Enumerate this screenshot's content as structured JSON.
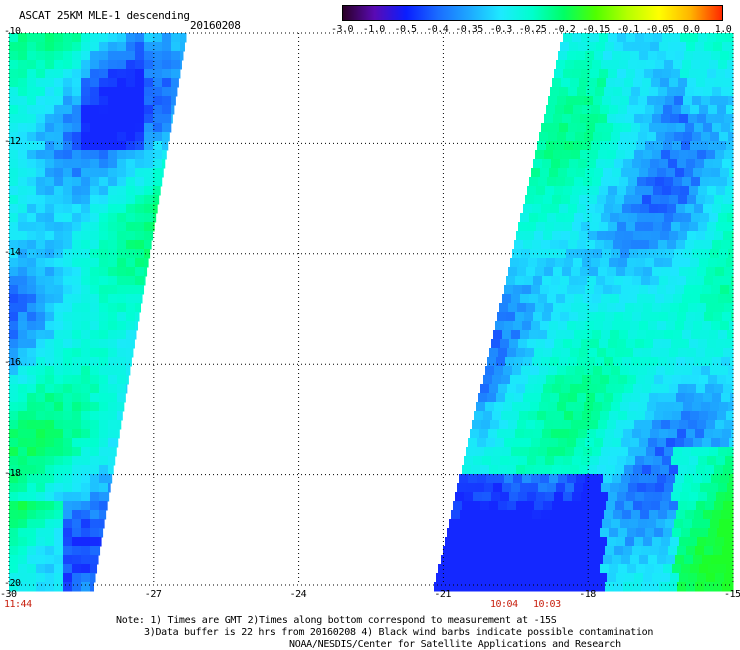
{
  "title": "ASCAT 25KM MLE-1 descending",
  "date": "20160208",
  "colorbar": {
    "labels": [
      "-3.0",
      "-1.0",
      "-0.5",
      "-0.4",
      "-0.35",
      "-0.3",
      "-0.25",
      "-0.2",
      "-0.15",
      "-0.1",
      "-0.05",
      "0.0",
      "1.0"
    ],
    "colors": [
      "#2a0026",
      "#5a0ab4",
      "#0a1eff",
      "#1a6cff",
      "#1ea8ff",
      "#1eeaff",
      "#00ffcc",
      "#00ff64",
      "#50ff00",
      "#b4ff00",
      "#ffff00",
      "#ffb400",
      "#ff2800"
    ]
  },
  "x_axis": {
    "ticks": [
      "-30",
      "-27",
      "-24",
      "-21",
      "-18",
      "-15"
    ]
  },
  "y_axis": {
    "ticks": [
      "-10",
      "-12",
      "-14",
      "-16",
      "-18",
      "-20"
    ]
  },
  "time_labels": [
    "11:44",
    "10:04",
    "10:03"
  ],
  "notes": [
    "Note: 1) Times are GMT 2)Times along bottom correspond to measurement at -15S",
    "3)Data buffer is 22 hrs from 20160208 4) Black wind barbs indicate possible contamination",
    "NOAA/NESDIS/Center for Satellite Applications and Research"
  ],
  "swaths": [
    {
      "name": "west-swath",
      "times": "11:44"
    },
    {
      "name": "east-swath",
      "times": "10:04"
    }
  ]
}
